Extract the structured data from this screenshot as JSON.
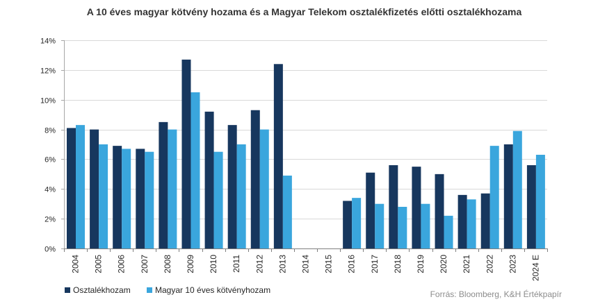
{
  "chart_data": {
    "type": "bar",
    "title": "A 10 éves magyar kötvény hozama és a Magyar Telekom osztalékfizetés előtti osztalékhozama",
    "xlabel": "",
    "ylabel": "",
    "categories": [
      "2004",
      "2005",
      "2006",
      "2007",
      "2008",
      "2009",
      "2010",
      "2011",
      "2012",
      "2013",
      "2014",
      "2015",
      "2016",
      "2017",
      "2018",
      "2019",
      "2020",
      "2021",
      "2022",
      "2023",
      "2024 E"
    ],
    "series": [
      {
        "name": "Osztalékhozam",
        "color": "#17375E",
        "values": [
          8.1,
          8.0,
          6.9,
          6.7,
          8.5,
          12.7,
          9.2,
          8.3,
          9.3,
          12.4,
          null,
          null,
          3.2,
          5.1,
          5.6,
          5.5,
          5.0,
          3.6,
          3.7,
          7.0,
          5.6
        ]
      },
      {
        "name": "Magyar 10 éves kötvényhozam",
        "color": "#3AA6DD",
        "values": [
          8.3,
          7.0,
          6.7,
          6.5,
          8.0,
          10.5,
          6.5,
          7.0,
          8.0,
          4.9,
          null,
          null,
          3.4,
          3.0,
          2.8,
          3.0,
          2.2,
          3.3,
          6.9,
          7.9,
          6.3
        ]
      }
    ],
    "ylim": [
      0,
      14
    ],
    "yticks": [
      0,
      2,
      4,
      6,
      8,
      10,
      12,
      14
    ],
    "ytick_labels": [
      "0%",
      "2%",
      "4%",
      "6%",
      "8%",
      "10%",
      "12%",
      "14%"
    ],
    "grid": true,
    "legend_position": "bottom-left"
  },
  "source": "Forrás: Bloomberg, K&H Értékpapír"
}
